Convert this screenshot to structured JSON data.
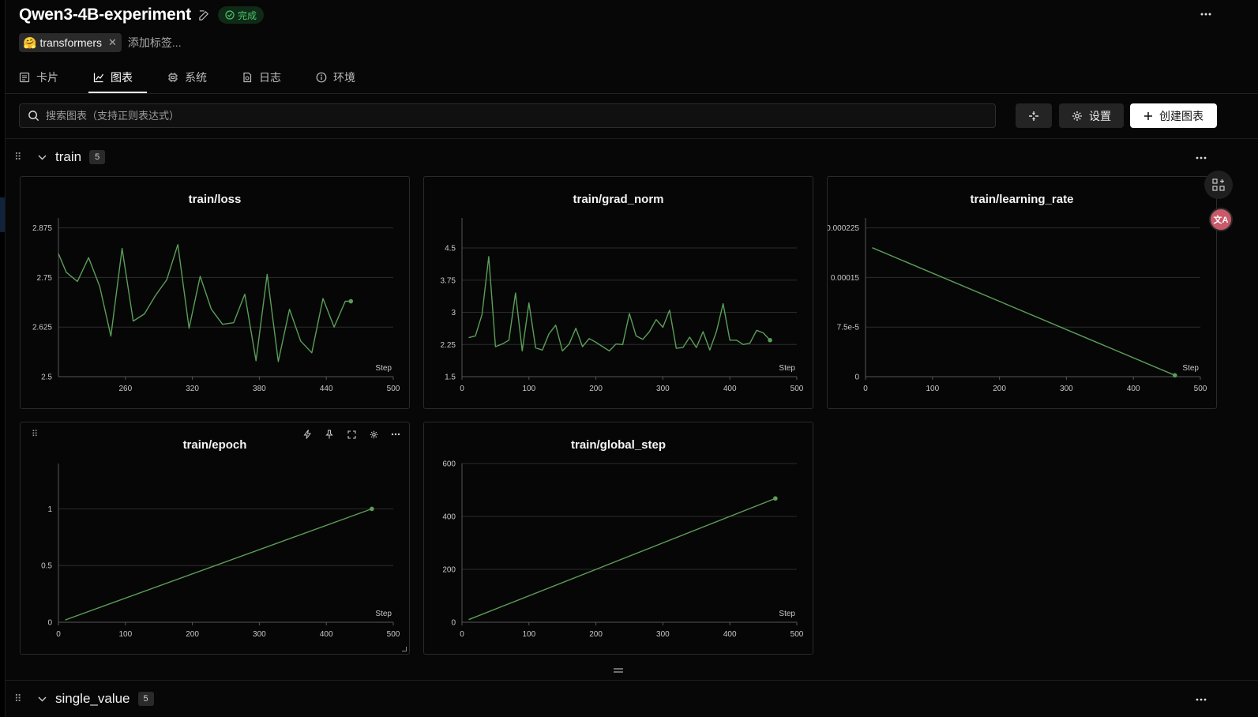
{
  "project": {
    "title": "Qwen3-4B-experiment",
    "status": "完成",
    "tag": "transformers",
    "tag_emoji": "🤗",
    "add_tag_label": "添加标签..."
  },
  "tabs": [
    {
      "label": "卡片",
      "icon": "card-icon"
    },
    {
      "label": "图表",
      "icon": "chart-line-icon",
      "active": true
    },
    {
      "label": "系统",
      "icon": "cpu-icon"
    },
    {
      "label": "日志",
      "icon": "log-icon"
    },
    {
      "label": "环境",
      "icon": "info-icon"
    }
  ],
  "toolbar": {
    "search_placeholder": "搜索图表（支持正则表达式）",
    "settings_label": "设置",
    "create_label": "创建图表"
  },
  "groups": [
    {
      "name": "train",
      "count": "5"
    },
    {
      "name": "single_value",
      "count": "5"
    }
  ],
  "floating": {
    "translate_label": "文A"
  },
  "colors": {
    "line": "#5a9e58",
    "grid": "#2c2c2c",
    "axis_text": "#c8c8c8"
  },
  "chart_data": [
    {
      "type": "line",
      "title": "train/loss",
      "xlabel": "Step",
      "xlim": [
        200,
        500
      ],
      "ylim": [
        2.5,
        2.9
      ],
      "xticks": [
        260,
        320,
        380,
        440,
        500
      ],
      "yticks": [
        2.5,
        2.625,
        2.75,
        2.875
      ],
      "ytick_labels": [
        "2.5",
        "2.625",
        "2.75",
        "2.875"
      ],
      "x": [
        200,
        207,
        217,
        227,
        237,
        247,
        257,
        267,
        277,
        287,
        297,
        307,
        317,
        327,
        337,
        347,
        357,
        367,
        377,
        387,
        397,
        407,
        417,
        427,
        437,
        447,
        457,
        462
      ],
      "y": [
        2.81,
        2.763,
        2.74,
        2.8,
        2.727,
        2.602,
        2.823,
        2.64,
        2.658,
        2.705,
        2.744,
        2.833,
        2.622,
        2.753,
        2.67,
        2.632,
        2.636,
        2.708,
        2.54,
        2.758,
        2.538,
        2.67,
        2.59,
        2.56,
        2.697,
        2.625,
        2.69,
        2.69
      ]
    },
    {
      "type": "line",
      "title": "train/grad_norm",
      "xlabel": "Step",
      "xlim": [
        0,
        500
      ],
      "ylim": [
        1.5,
        5.2
      ],
      "xticks": [
        0,
        100,
        200,
        300,
        400,
        500
      ],
      "yticks": [
        1.5,
        2.25,
        3,
        3.75,
        4.5
      ],
      "ytick_labels": [
        "1.5",
        "2.25",
        "3",
        "3.75",
        "4.5"
      ],
      "x": [
        10,
        20,
        30,
        40,
        50,
        60,
        70,
        80,
        90,
        100,
        110,
        120,
        130,
        140,
        150,
        160,
        170,
        180,
        190,
        200,
        210,
        220,
        230,
        240,
        250,
        260,
        270,
        280,
        290,
        300,
        310,
        320,
        330,
        340,
        350,
        360,
        370,
        380,
        390,
        400,
        410,
        420,
        430,
        440,
        450,
        460
      ],
      "y": [
        2.41,
        2.45,
        2.95,
        4.3,
        2.2,
        2.26,
        2.35,
        3.45,
        2.1,
        3.22,
        2.17,
        2.12,
        2.5,
        2.7,
        2.1,
        2.26,
        2.63,
        2.2,
        2.39,
        2.3,
        2.2,
        2.1,
        2.26,
        2.25,
        2.97,
        2.45,
        2.37,
        2.55,
        2.83,
        2.65,
        3.05,
        2.16,
        2.18,
        2.42,
        2.18,
        2.55,
        2.12,
        2.55,
        3.2,
        2.35,
        2.35,
        2.25,
        2.28,
        2.58,
        2.52,
        2.35
      ]
    },
    {
      "type": "line",
      "title": "train/learning_rate",
      "xlabel": "Step",
      "xlim": [
        0,
        500
      ],
      "ylim": [
        0,
        0.00024
      ],
      "xticks": [
        0,
        100,
        200,
        300,
        400,
        500
      ],
      "yticks": [
        0,
        7.5e-05,
        0.00015,
        0.000225
      ],
      "ytick_labels": [
        "0",
        "7.5e-5",
        "0.00015",
        "0.000225"
      ],
      "x": [
        10,
        462
      ],
      "y": [
        0.000195,
        2e-06
      ]
    },
    {
      "type": "line",
      "title": "train/epoch",
      "xlabel": "Step",
      "xlim": [
        0,
        500
      ],
      "ylim": [
        0,
        1.4
      ],
      "xticks": [
        0,
        100,
        200,
        300,
        400,
        500
      ],
      "yticks": [
        0,
        0.5,
        1
      ],
      "ytick_labels": [
        "0",
        "0.5",
        "1"
      ],
      "x": [
        10,
        468
      ],
      "y": [
        0.02,
        1.0
      ]
    },
    {
      "type": "line",
      "title": "train/global_step",
      "xlabel": "Step",
      "xlim": [
        0,
        500
      ],
      "ylim": [
        0,
        600
      ],
      "xticks": [
        0,
        100,
        200,
        300,
        400,
        500
      ],
      "yticks": [
        0,
        200,
        400,
        600
      ],
      "ytick_labels": [
        "0",
        "200",
        "400",
        "600"
      ],
      "x": [
        10,
        468
      ],
      "y": [
        10,
        468
      ]
    }
  ]
}
